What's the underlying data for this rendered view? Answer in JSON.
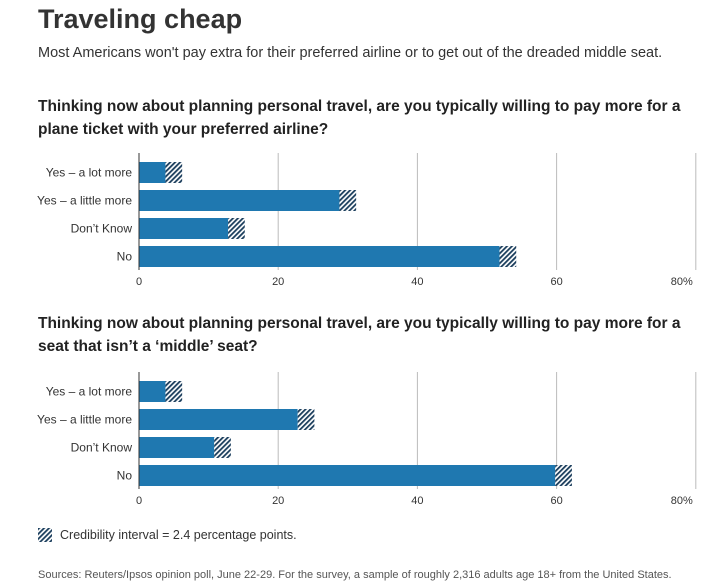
{
  "title": "Traveling cheap",
  "subtitle": "Most Americans won't pay extra for their preferred airline or to get out of the dreaded middle seat.",
  "legend_text": "Credibility interval = 2.4 percentage points.",
  "source": "Sources: Reuters/Ipsos opinion poll, June 22-29. For the survey, a sample of roughly 2,316 adults age 18+ from the United States.",
  "colors": {
    "bar": "#1f78b0",
    "hatch": "#1a3d5c",
    "grid": "#bbbbbb",
    "text": "#333333"
  },
  "chart_data": [
    {
      "type": "bar",
      "orientation": "horizontal",
      "title": "Thinking now about planning personal travel, are you typically willing to pay more for a plane ticket with your preferred airline?",
      "categories": [
        "Yes – a lot more",
        "Yes – a little more",
        "Don’t Know",
        "No"
      ],
      "values": [
        5,
        30,
        14,
        53
      ],
      "credibility_interval": 2.4,
      "xlim": [
        0,
        80
      ],
      "xticks": [
        "0",
        "20",
        "40",
        "60",
        "80%"
      ],
      "grid": true
    },
    {
      "type": "bar",
      "orientation": "horizontal",
      "title": "Thinking now about planning personal travel, are you typically willing to pay more for a seat that isn’t a ‘middle’ seat?",
      "categories": [
        "Yes – a lot more",
        "Yes – a little more",
        "Don’t Know",
        "No"
      ],
      "values": [
        5,
        24,
        12,
        61
      ],
      "credibility_interval": 2.4,
      "xlim": [
        0,
        80
      ],
      "xticks": [
        "0",
        "20",
        "40",
        "60",
        "80%"
      ],
      "grid": true
    }
  ]
}
